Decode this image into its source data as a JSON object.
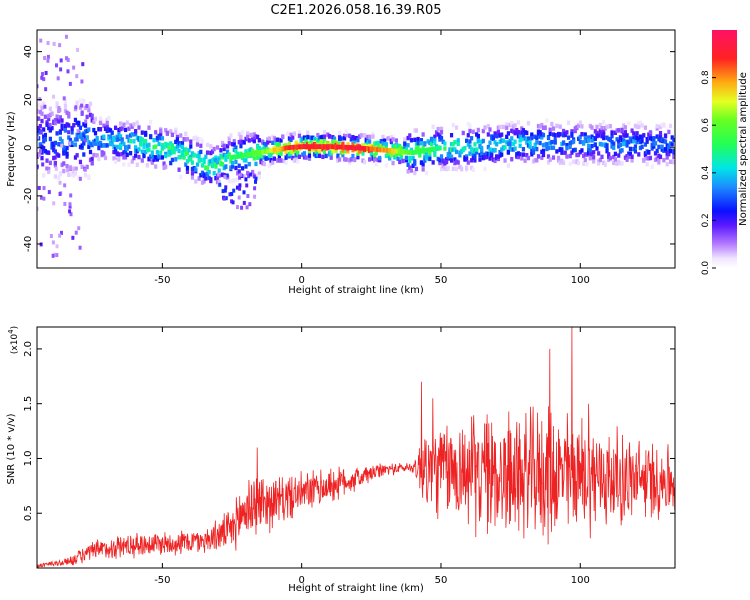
{
  "chart_data": [
    {
      "type": "heatmap",
      "title": "C2E1.2026.058.16.39.R05",
      "xlabel": "Height of straight line (km)",
      "ylabel": "Frequency (Hz)",
      "xlim": [
        -95,
        134
      ],
      "ylim": [
        -50,
        49
      ],
      "x_ticks": [
        -50,
        0,
        50,
        100
      ],
      "y_ticks": [
        40,
        20,
        0,
        -20,
        -40
      ],
      "x_tick_labels": [
        "-50",
        "0",
        "50",
        "100"
      ],
      "y_tick_labels": [
        "40",
        "20",
        "0",
        "-20",
        "-40"
      ],
      "colorbar": {
        "label": "Normalized spectral amplitude",
        "range": [
          0,
          1
        ],
        "ticks": [
          0.0,
          0.2,
          0.4,
          0.6,
          0.8
        ],
        "tick_labels": [
          "0.0",
          "0.2",
          "0.4",
          "0.6",
          "0.8"
        ]
      },
      "ridge": {
        "x": [
          -90,
          -75,
          -60,
          -50,
          -40,
          -33,
          -25,
          -15,
          -5,
          0,
          10,
          20,
          30,
          40,
          50,
          60,
          70,
          80,
          90,
          100,
          110,
          120,
          134
        ],
        "frequency": [
          3,
          4,
          2,
          0,
          -4,
          -8,
          -4,
          -2,
          0,
          0.5,
          0.5,
          0,
          -1,
          -2,
          0,
          0,
          1,
          2,
          2,
          2,
          1.5,
          1.5,
          1
        ],
        "amplitude": [
          0.3,
          0.35,
          0.45,
          0.5,
          0.5,
          0.5,
          0.5,
          0.6,
          0.85,
          0.9,
          0.9,
          0.9,
          0.8,
          0.55,
          0.5,
          0.45,
          0.4,
          0.4,
          0.35,
          0.35,
          0.35,
          0.35,
          0.3
        ]
      }
    },
    {
      "type": "line",
      "xlabel": "Height of straight line (km)",
      "ylabel": "SNR (10 * v/v)",
      "scale_label": "(x10",
      "scale_exponent": "4",
      "scale_suffix": ")",
      "xlim": [
        -95,
        134
      ],
      "ylim": [
        0,
        2.2
      ],
      "x_ticks": [
        -50,
        0,
        50,
        100
      ],
      "y_ticks": [
        0.5,
        1.0,
        1.5,
        2.0
      ],
      "x_tick_labels": [
        "-50",
        "0",
        "50",
        "100"
      ],
      "y_tick_labels": [
        "0.5",
        "1.0",
        "1.5",
        "2.0"
      ],
      "series": [
        {
          "name": "SNR",
          "color": "#ee2222",
          "envelope": {
            "x": [
              -95,
              -85,
              -75,
              -65,
              -55,
              -45,
              -35,
              -25,
              -20,
              -15,
              -10,
              0,
              10,
              20,
              30,
              40,
              45,
              50,
              60,
              70,
              80,
              90,
              100,
              110,
              120,
              134
            ],
            "mean": [
              0.02,
              0.05,
              0.15,
              0.2,
              0.22,
              0.23,
              0.25,
              0.35,
              0.55,
              0.6,
              0.6,
              0.68,
              0.75,
              0.82,
              0.9,
              0.92,
              0.9,
              0.9,
              0.88,
              0.85,
              0.85,
              0.85,
              0.85,
              0.82,
              0.8,
              0.8
            ],
            "amp": [
              0.02,
              0.04,
              0.1,
              0.12,
              0.12,
              0.12,
              0.12,
              0.2,
              0.35,
              0.3,
              0.25,
              0.2,
              0.18,
              0.12,
              0.06,
              0.05,
              0.5,
              0.45,
              0.55,
              0.6,
              0.6,
              0.65,
              0.55,
              0.5,
              0.4,
              0.35
            ]
          },
          "peaks": [
            [
              -16,
              1.1
            ],
            [
              43,
              1.7
            ],
            [
              47,
              1.55
            ],
            [
              89,
              2.0
            ],
            [
              97,
              2.2
            ],
            [
              103,
              1.5
            ]
          ]
        }
      ]
    }
  ]
}
